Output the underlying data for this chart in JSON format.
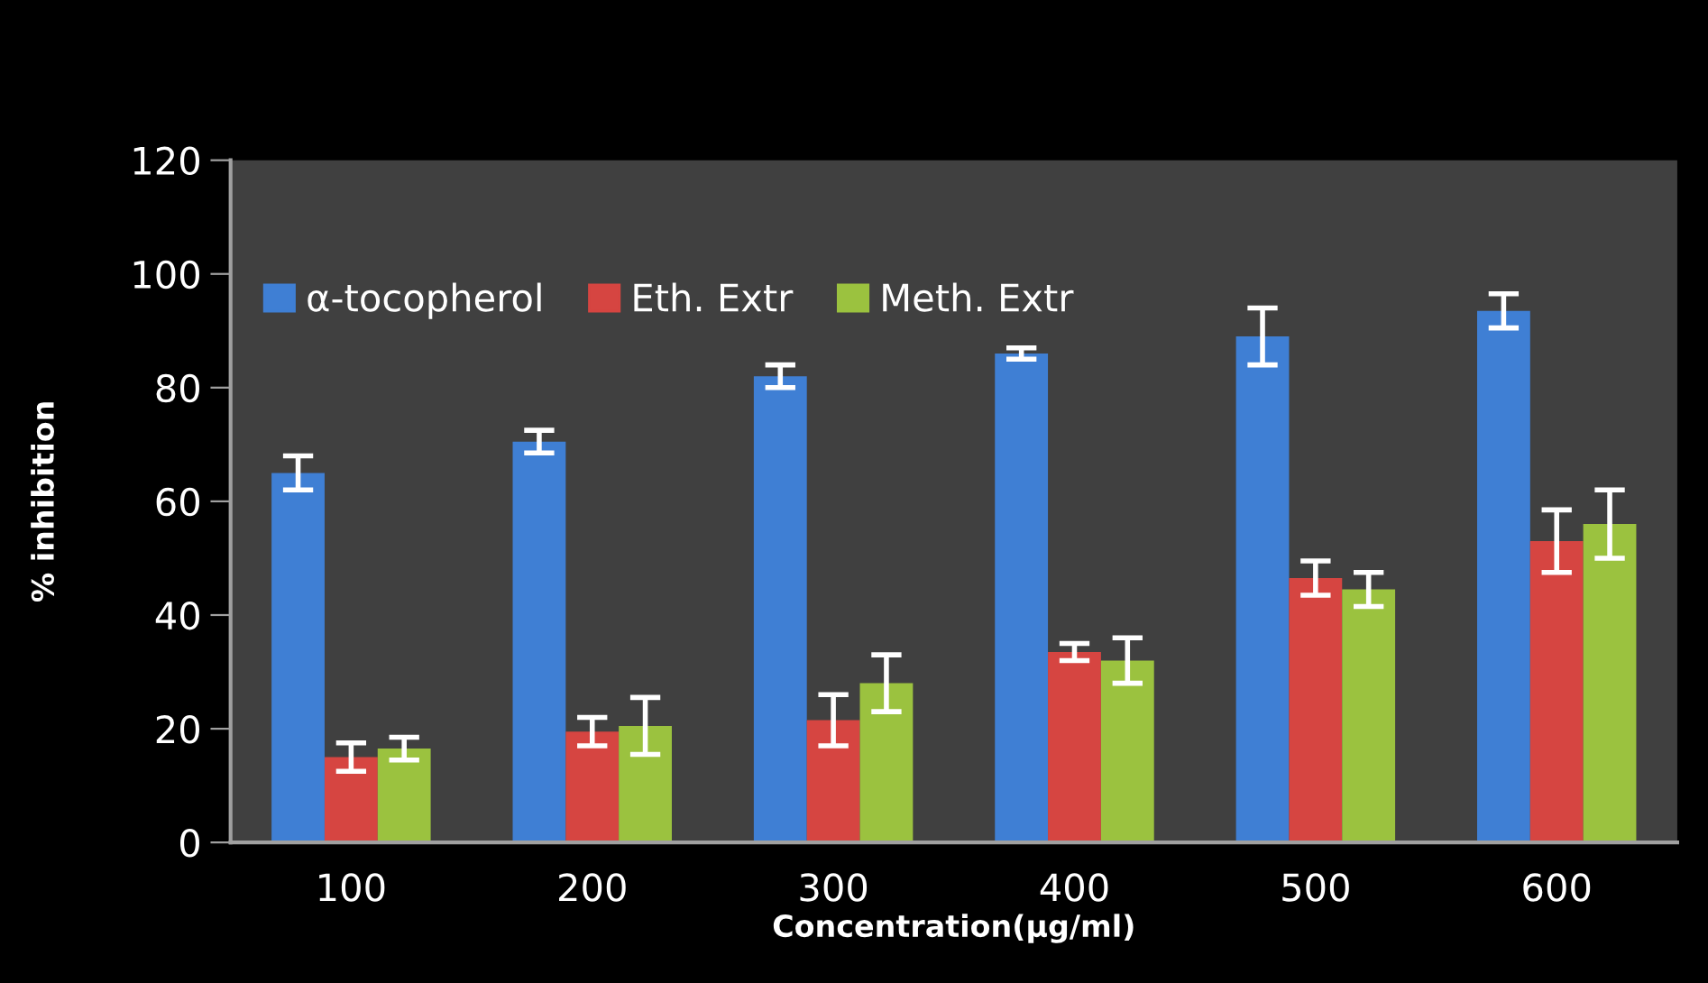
{
  "chart_data": {
    "type": "bar",
    "xlabel": "Concentration(µg/ml)",
    "ylabel": "% inhibition",
    "categories": [
      "100",
      "200",
      "300",
      "400",
      "500",
      "600"
    ],
    "series": [
      {
        "name": "α-tocopherol",
        "color": "#3f7fd4",
        "values": [
          65,
          70.5,
          82,
          86,
          89,
          93.5
        ],
        "errors": [
          3,
          2,
          2,
          1,
          5,
          3
        ]
      },
      {
        "name": "Eth. Extr",
        "color": "#d64541",
        "values": [
          15,
          19.5,
          21.5,
          33.5,
          46.5,
          53
        ],
        "errors": [
          2.5,
          2.5,
          4.5,
          1.5,
          3,
          5.5
        ]
      },
      {
        "name": "Meth. Extr",
        "color": "#9bc23f",
        "values": [
          16.5,
          20.5,
          28,
          32,
          44.5,
          56
        ],
        "errors": [
          2,
          5,
          5,
          4,
          3,
          6
        ]
      }
    ],
    "ylim": [
      0,
      120
    ],
    "yticks": [
      0,
      20,
      40,
      60,
      80,
      100,
      120
    ],
    "grid": false,
    "legend": "top left"
  }
}
